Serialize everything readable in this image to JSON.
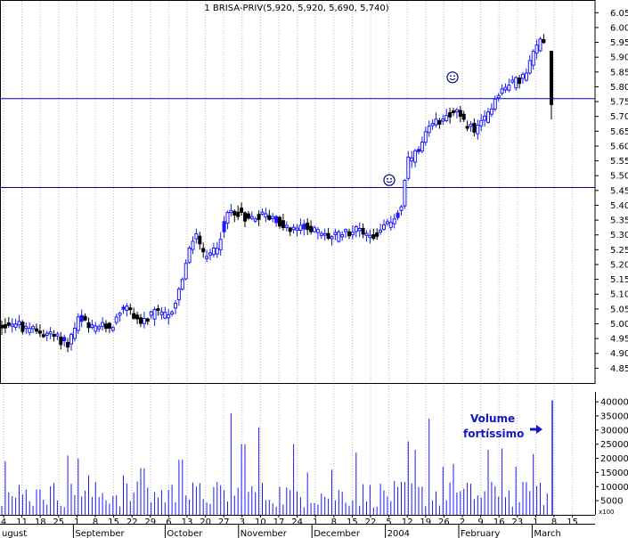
{
  "chart_data": {
    "type": "candlestick",
    "title": "1 BRISA-PRIV(5,920, 5,920, 5,690, 5,740)",
    "last_candle": {
      "open": 5.92,
      "high": 5.92,
      "low": 5.69,
      "close": 5.74
    },
    "price_axis": {
      "range": [
        4.8,
        6.09
      ],
      "ticks": [
        "6.05",
        "6.00",
        "5.95",
        "5.90",
        "5.85",
        "5.80",
        "5.75",
        "5.70",
        "5.65",
        "5.60",
        "5.55",
        "5.50",
        "5.45",
        "5.40",
        "5.35",
        "5.30",
        "5.25",
        "5.20",
        "5.15",
        "5.10",
        "5.05",
        "5.00",
        "4.95",
        "4.90",
        "4.85"
      ]
    },
    "volume_axis": {
      "range": [
        0,
        43500
      ],
      "unit": "x100",
      "ticks": [
        "40000",
        "35000",
        "30000",
        "25000",
        "20000",
        "15000",
        "10000",
        "5000"
      ]
    },
    "x_axis": {
      "day_labels": [
        "4",
        "11",
        "18",
        "25",
        "1",
        "8",
        "15",
        "22",
        "29",
        "6",
        "13",
        "20",
        "27",
        "3",
        "10",
        "17",
        "24",
        "1",
        "8",
        "15",
        "22",
        "5",
        "12",
        "19",
        "26",
        "2",
        "9",
        "16",
        "23",
        "1",
        "8",
        "15"
      ],
      "month_labels": [
        {
          "label": "ugust",
          "after_day": null
        },
        {
          "label": "September",
          "after_day": 4
        },
        {
          "label": "October",
          "after_day": 9
        },
        {
          "label": "November",
          "after_day": 13
        },
        {
          "label": "December",
          "after_day": 17
        },
        {
          "label": "2004",
          "after_day": 21
        },
        {
          "label": "February",
          "after_day": 25
        },
        {
          "label": "March",
          "after_day": 29
        }
      ]
    },
    "horizontal_lines": [
      5.76,
      5.46
    ],
    "price_keypoints": [
      [
        0,
        4.99
      ],
      [
        10,
        5.0
      ],
      [
        20,
        5.0
      ],
      [
        30,
        4.97
      ],
      [
        40,
        4.98
      ],
      [
        45,
        4.97
      ],
      [
        60,
        4.96
      ],
      [
        76,
        4.93
      ],
      [
        90,
        5.03
      ],
      [
        100,
        4.98
      ],
      [
        110,
        4.99
      ],
      [
        125,
        4.99
      ],
      [
        140,
        5.06
      ],
      [
        160,
        5.0
      ],
      [
        175,
        5.04
      ],
      [
        190,
        5.02
      ],
      [
        200,
        5.1
      ],
      [
        210,
        5.22
      ],
      [
        220,
        5.31
      ],
      [
        230,
        5.21
      ],
      [
        245,
        5.27
      ],
      [
        255,
        5.37
      ],
      [
        265,
        5.38
      ],
      [
        280,
        5.35
      ],
      [
        295,
        5.37
      ],
      [
        310,
        5.35
      ],
      [
        325,
        5.31
      ],
      [
        345,
        5.33
      ],
      [
        360,
        5.3
      ],
      [
        375,
        5.29
      ],
      [
        390,
        5.31
      ],
      [
        405,
        5.32
      ],
      [
        415,
        5.29
      ],
      [
        430,
        5.32
      ],
      [
        440,
        5.35
      ],
      [
        450,
        5.39
      ],
      [
        458,
        5.55
      ],
      [
        470,
        5.58
      ],
      [
        480,
        5.65
      ],
      [
        490,
        5.68
      ],
      [
        500,
        5.7
      ],
      [
        510,
        5.72
      ],
      [
        520,
        5.68
      ],
      [
        535,
        5.65
      ],
      [
        545,
        5.7
      ],
      [
        560,
        5.78
      ],
      [
        570,
        5.8
      ],
      [
        580,
        5.82
      ],
      [
        590,
        5.84
      ],
      [
        600,
        5.92
      ],
      [
        608,
        5.97
      ],
      [
        616,
        5.93
      ]
    ],
    "volume_keypoints": [
      [
        5,
        19000
      ],
      [
        16,
        6000
      ],
      [
        43,
        9000
      ],
      [
        77,
        21000
      ],
      [
        89,
        20000
      ],
      [
        100,
        14000
      ],
      [
        137,
        14000
      ],
      [
        160,
        16500
      ],
      [
        203,
        19500
      ],
      [
        258,
        36000
      ],
      [
        273,
        25000
      ],
      [
        290,
        31000
      ],
      [
        330,
        25000
      ],
      [
        346,
        15000
      ],
      [
        371,
        16000
      ],
      [
        401,
        22000
      ],
      [
        458,
        26000
      ],
      [
        466,
        23000
      ],
      [
        482,
        34000
      ],
      [
        498,
        17000
      ],
      [
        508,
        18000
      ],
      [
        549,
        23000
      ],
      [
        565,
        23500
      ],
      [
        579,
        17000
      ],
      [
        600,
        21500
      ],
      [
        620,
        40500
      ]
    ],
    "annotations": [
      {
        "type": "smiley",
        "x": 437,
        "price": 5.485
      },
      {
        "type": "smiley",
        "x": 508,
        "price": 5.832
      },
      {
        "type": "text",
        "lines": [
          "Volume",
          "fortíssimo"
        ]
      },
      {
        "type": "arrow",
        "direction": "right"
      }
    ]
  }
}
